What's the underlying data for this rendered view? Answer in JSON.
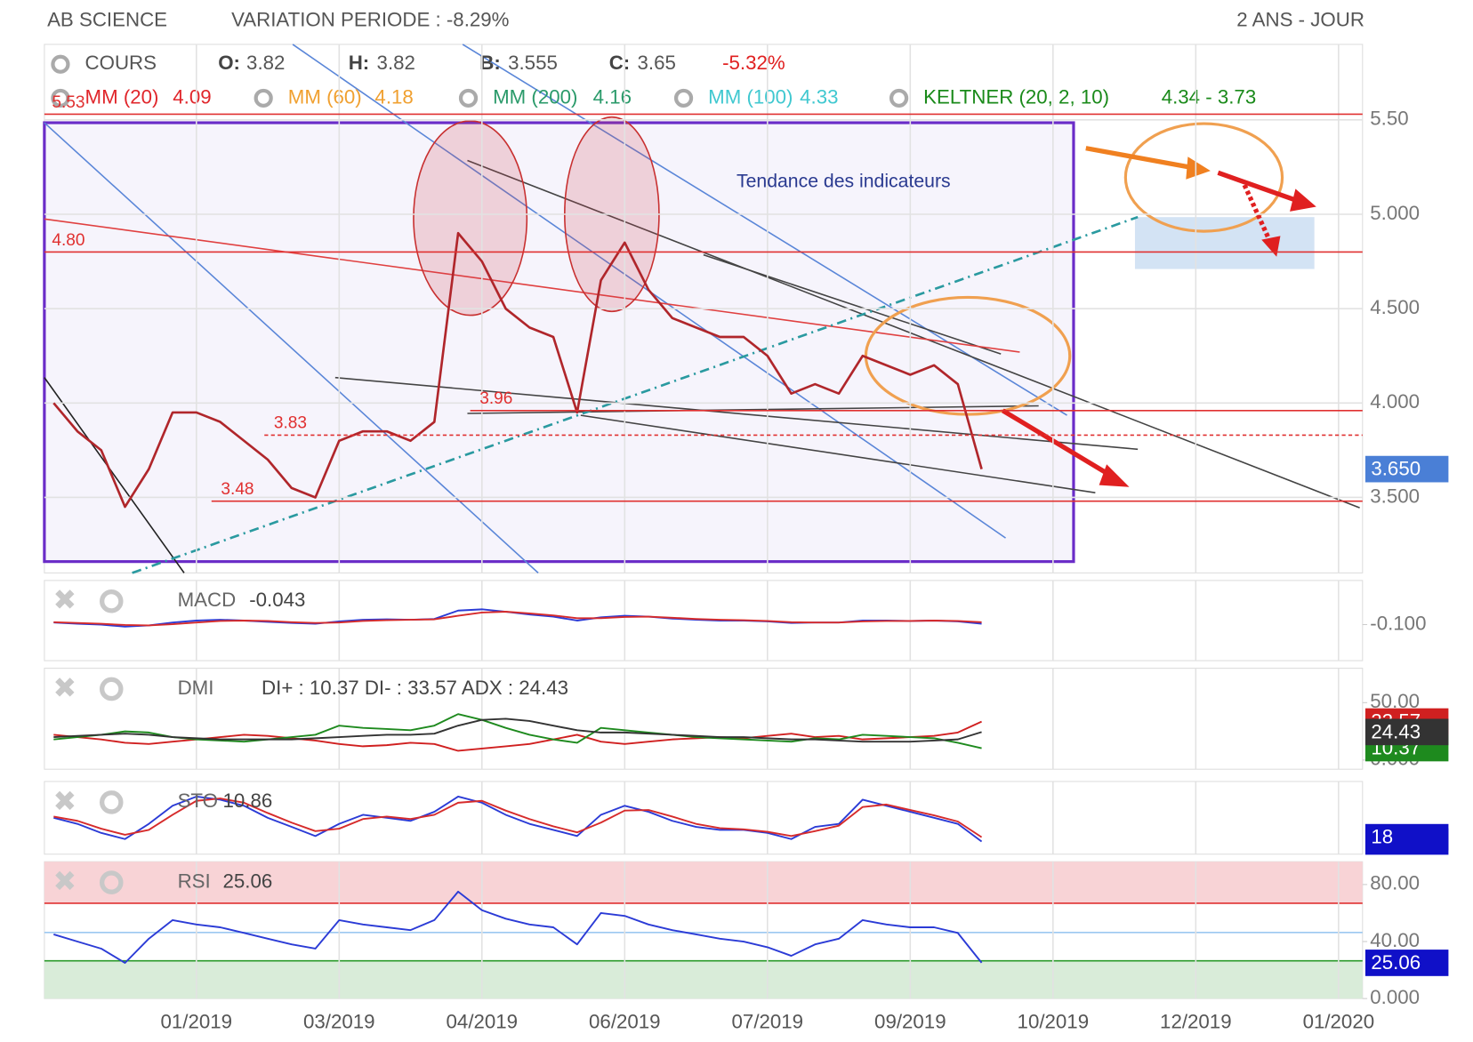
{
  "header": {
    "title": "AB SCIENCE",
    "variation": "VARIATION PERIODE : -8.29%",
    "period": "2 ANS - JOUR"
  },
  "legend": {
    "cours": "COURS",
    "ohlc": [
      {
        "label": "O:",
        "value": 3.82
      },
      {
        "label": "H:",
        "value": 3.82
      },
      {
        "label": "B:",
        "value": 3.555
      },
      {
        "label": "C:",
        "value": 3.65
      }
    ],
    "change": "-5.32%",
    "indicators": [
      {
        "label": "MM (20)",
        "value": 4.09,
        "color": "#e0262b"
      },
      {
        "label": "MM (60)",
        "value": 4.18,
        "color": "#f0a030"
      },
      {
        "label": "MM (200)",
        "value": 4.16,
        "color": "#2a9a6a"
      },
      {
        "label": "MM (100)",
        "value": 4.33,
        "color": "#40c8d0"
      },
      {
        "label": "KELTNER (20, 2, 10)",
        "value": "4.34 - 3.73",
        "color": "#1a8a1a"
      }
    ]
  },
  "chart_data": [
    {
      "type": "line",
      "categories": [
        null,
        null,
        null,
        null,
        null,
        null,
        "01/2019",
        null,
        null,
        null,
        null,
        null,
        "03/2019",
        null,
        null,
        null,
        null,
        null,
        "04/2019",
        null,
        null,
        null,
        null,
        null,
        "06/2019",
        null,
        null,
        null,
        null,
        null,
        "07/2019",
        null,
        null,
        null,
        null,
        null,
        "09/2019",
        null,
        null,
        null,
        null,
        null,
        "10/2019",
        null,
        null,
        null,
        null,
        null,
        "12/2019",
        null,
        null,
        null,
        null,
        null,
        "01/2020"
      ],
      "series": [
        {
          "color": "#b0262b",
          "values": [
            4.0,
            3.85,
            3.75,
            3.45,
            3.65,
            3.95,
            3.95,
            3.9,
            3.8,
            3.7,
            3.55,
            3.5,
            3.8,
            3.85,
            3.85,
            3.8,
            3.9,
            4.9,
            4.75,
            4.5,
            4.4,
            4.35,
            3.95,
            4.65,
            4.85,
            4.6,
            4.45,
            4.4,
            4.35,
            4.35,
            4.25,
            4.05,
            4.1,
            4.05,
            4.25,
            4.2,
            4.15,
            4.2,
            4.1,
            3.65,
            null,
            null,
            null,
            null,
            null,
            null,
            null,
            null,
            null,
            null,
            null,
            null,
            null,
            null,
            null
          ]
        }
      ],
      "ylim": [
        3.1,
        5.9
      ],
      "yticks": [
        {
          "value": 5.5,
          "label": "5.50"
        },
        {
          "value": 5,
          "label": "5.000"
        },
        {
          "value": 4.5,
          "label": "4.500"
        },
        {
          "value": 4,
          "label": "4.000"
        },
        {
          "value": 3.5,
          "label": "3.500"
        }
      ],
      "levels": [
        5.53,
        {
          "value": 4.8,
          "label": "4.80"
        },
        3.96,
        3.83,
        3.48
      ],
      "annotation": "Tendance des indicateurs",
      "last_price": {
        "value": 3.65,
        "label": "3.650"
      },
      "grid": true
    },
    {
      "type": "line",
      "title": "MACD",
      "subtitle": "-0.043",
      "ylim": [
        -1,
        1
      ],
      "yticks": [
        {
          "value": -0.1,
          "label": "-0.100"
        }
      ],
      "series": [
        {
          "color": "#2b3bd6",
          "values": [
            -0.05,
            -0.08,
            -0.1,
            -0.15,
            -0.12,
            -0.05,
            0,
            0.02,
            0,
            -0.03,
            -0.06,
            -0.08,
            -0.02,
            0.02,
            0.03,
            0.02,
            0.04,
            0.25,
            0.28,
            0.22,
            0.15,
            0.1,
            0,
            0.08,
            0.12,
            0.1,
            0.05,
            0.02,
            0,
            0,
            -0.02,
            -0.06,
            -0.05,
            -0.05,
            0,
            0,
            -0.01,
            0,
            -0.02,
            -0.08
          ]
        },
        {
          "color": "#d62b2b",
          "values": [
            -0.04,
            -0.06,
            -0.08,
            -0.11,
            -0.12,
            -0.09,
            -0.05,
            -0.01,
            0,
            -0.01,
            -0.04,
            -0.06,
            -0.05,
            -0.01,
            0.01,
            0.02,
            0.03,
            0.12,
            0.2,
            0.22,
            0.18,
            0.13,
            0.06,
            0.06,
            0.09,
            0.1,
            0.07,
            0.04,
            0.02,
            0.01,
            -0.01,
            -0.04,
            -0.05,
            -0.05,
            -0.02,
            -0.01,
            -0.01,
            0,
            -0.01,
            -0.04
          ]
        }
      ]
    },
    {
      "type": "line",
      "title": "DMI",
      "subtitle": "DI+ : 10.37 DI- : 33.57 ADX : 24.43",
      "ylim": [
        -8,
        80
      ],
      "yticks": [
        {
          "value": 50,
          "label": "50.00"
        },
        {
          "value": 0,
          "label": "0.000"
        }
      ],
      "current_box": true,
      "series": [
        {
          "color": "#d02020",
          "values": [
            22,
            20,
            18,
            15,
            14,
            16,
            18,
            20,
            22,
            21,
            19,
            17,
            14,
            12,
            13,
            15,
            14,
            8,
            10,
            12,
            14,
            18,
            22,
            16,
            14,
            16,
            18,
            19,
            20,
            19,
            21,
            23,
            20,
            21,
            18,
            19,
            20,
            21,
            24,
            33.57
          ]
        },
        {
          "color": "#1e8a1e",
          "values": [
            18,
            20,
            22,
            25,
            24,
            20,
            18,
            17,
            16,
            18,
            20,
            22,
            30,
            28,
            27,
            26,
            30,
            40,
            35,
            28,
            22,
            18,
            15,
            28,
            26,
            24,
            22,
            20,
            19,
            18,
            17,
            16,
            19,
            18,
            22,
            21,
            20,
            19,
            15,
            10.37
          ]
        },
        {
          "color": "#333333",
          "values": [
            20,
            21,
            22,
            23,
            22,
            20,
            19,
            18,
            18,
            18,
            18,
            19,
            20,
            21,
            22,
            22,
            23,
            30,
            35,
            36,
            34,
            30,
            26,
            24,
            24,
            23,
            22,
            21,
            20,
            20,
            19,
            18,
            18,
            17,
            16,
            16,
            16,
            17,
            18,
            24.43
          ]
        }
      ]
    },
    {
      "type": "line",
      "title": "STO",
      "subtitle": "10.86",
      "ylim": [
        -10,
        110
      ],
      "yticks": [],
      "current_box": true,
      "series": [
        {
          "color": "#2b3bd6",
          "values": [
            50,
            40,
            25,
            15,
            40,
            70,
            85,
            80,
            70,
            50,
            35,
            20,
            40,
            55,
            50,
            45,
            60,
            85,
            75,
            55,
            40,
            30,
            20,
            55,
            70,
            60,
            45,
            35,
            30,
            30,
            25,
            15,
            35,
            40,
            80,
            70,
            60,
            50,
            40,
            10.86
          ]
        },
        {
          "color": "#d62b2b",
          "values": [
            52,
            45,
            32,
            22,
            30,
            55,
            78,
            82,
            75,
            58,
            42,
            28,
            32,
            48,
            52,
            48,
            55,
            75,
            78,
            62,
            48,
            36,
            26,
            42,
            62,
            63,
            52,
            40,
            33,
            31,
            27,
            20,
            28,
            37,
            68,
            72,
            63,
            54,
            44,
            18
          ]
        }
      ]
    },
    {
      "type": "line",
      "title": "RSI",
      "subtitle": "25.06",
      "ylim": [
        0,
        96
      ],
      "yticks": [
        {
          "value": 80,
          "label": "80.00"
        },
        {
          "value": 40,
          "label": "40.00"
        },
        {
          "value": 0,
          "label": "0.000"
        }
      ],
      "current_box": true,
      "series": [
        {
          "color": "#2b3bd6",
          "values": [
            45,
            40,
            35,
            25,
            42,
            55,
            52,
            50,
            46,
            42,
            38,
            35,
            55,
            52,
            50,
            48,
            55,
            75,
            62,
            56,
            52,
            50,
            38,
            60,
            58,
            52,
            48,
            45,
            42,
            40,
            36,
            30,
            38,
            42,
            55,
            52,
            50,
            50,
            46,
            25.06
          ]
        }
      ]
    }
  ]
}
